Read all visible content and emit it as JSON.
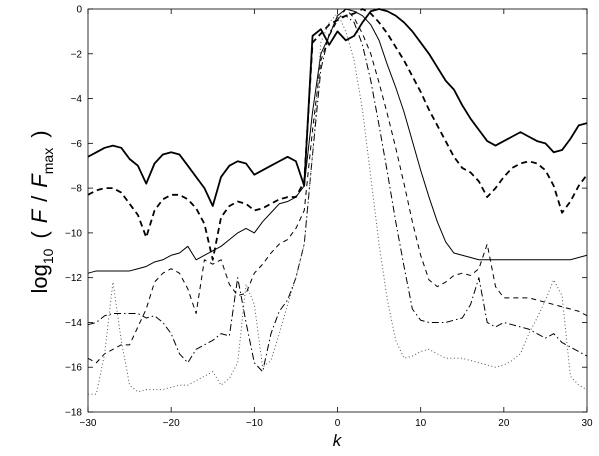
{
  "chart_data": {
    "type": "line",
    "xlabel": "k",
    "ylabel": {
      "prefix": "log",
      "sub10": "10",
      "open": "(",
      "var1": "F",
      "slash": "/",
      "var2": "F",
      "subvar": "max",
      "close": ")"
    },
    "xlim": [
      -30,
      30
    ],
    "ylim": [
      -18,
      0
    ],
    "xticks": [
      -30,
      -20,
      -10,
      0,
      10,
      20,
      30
    ],
    "yticks": [
      0,
      -2,
      -4,
      -6,
      -8,
      -10,
      -12,
      -14,
      -16,
      -18
    ],
    "grid": false,
    "legend": false,
    "series": [
      {
        "style": "thick-solid",
        "x": [
          -30,
          -29,
          -28,
          -27,
          -26,
          -25,
          -24,
          -23,
          -22,
          -21,
          -20,
          -19,
          -18,
          -17,
          -16,
          -15,
          -14,
          -13,
          -12,
          -11,
          -10,
          -9,
          -8,
          -7,
          -6,
          -5,
          -4,
          -3,
          -2,
          -1,
          0,
          1,
          2,
          3,
          4,
          5,
          6,
          7,
          8,
          9,
          10,
          11,
          12,
          13,
          14,
          15,
          16,
          17,
          18,
          19,
          20,
          21,
          22,
          23,
          24,
          25,
          26,
          27,
          28,
          29,
          30
        ],
        "y": [
          -6.6,
          -6.4,
          -6.2,
          -6.1,
          -6.2,
          -6.7,
          -7.0,
          -7.8,
          -6.9,
          -6.5,
          -6.4,
          -6.5,
          -7.0,
          -7.5,
          -8.0,
          -8.8,
          -7.5,
          -7.0,
          -6.8,
          -6.9,
          -7.4,
          -7.2,
          -7.0,
          -6.8,
          -6.6,
          -6.8,
          -7.9,
          -1.2,
          -0.9,
          -1.6,
          -1.0,
          -1.4,
          -1.2,
          -0.6,
          -0.1,
          0,
          -0.1,
          -0.3,
          -0.6,
          -1.0,
          -1.5,
          -2.0,
          -2.6,
          -3.2,
          -3.6,
          -4.3,
          -4.9,
          -5.4,
          -5.9,
          -6.1,
          -5.9,
          -5.7,
          -5.5,
          -5.7,
          -5.9,
          -6.0,
          -6.4,
          -6.3,
          -5.8,
          -5.2,
          -5.1
        ]
      },
      {
        "style": "thick-dashed",
        "x": [
          -30,
          -29,
          -28,
          -27,
          -26,
          -25,
          -24,
          -23,
          -22,
          -21,
          -20,
          -19,
          -18,
          -17,
          -16,
          -15,
          -14,
          -13,
          -12,
          -11,
          -10,
          -9,
          -8,
          -7,
          -6,
          -5,
          -4,
          -3,
          -2,
          -1,
          0,
          1,
          2,
          3,
          4,
          5,
          6,
          7,
          8,
          9,
          10,
          11,
          12,
          13,
          14,
          15,
          16,
          17,
          18,
          19,
          20,
          21,
          22,
          23,
          24,
          25,
          26,
          27,
          28,
          29,
          30
        ],
        "y": [
          -8.3,
          -8.1,
          -8.0,
          -8.0,
          -8.2,
          -8.7,
          -9.2,
          -10.2,
          -9.0,
          -8.5,
          -8.3,
          -8.3,
          -8.5,
          -8.9,
          -9.6,
          -11.2,
          -9.3,
          -8.8,
          -8.6,
          -8.7,
          -9.0,
          -8.9,
          -8.7,
          -8.5,
          -8.4,
          -8.4,
          -7.7,
          -1.5,
          -1.1,
          -0.7,
          -0.5,
          -0.3,
          -0.2,
          0,
          -0.2,
          -0.6,
          -1.1,
          -1.7,
          -2.3,
          -3.0,
          -3.7,
          -4.5,
          -5.2,
          -5.9,
          -6.6,
          -7.1,
          -7.3,
          -7.7,
          -8.4,
          -8.0,
          -7.5,
          -7.1,
          -6.9,
          -6.8,
          -6.9,
          -7.2,
          -7.9,
          -9.1,
          -8.6,
          -7.9,
          -7.4
        ]
      },
      {
        "style": "thin-solid",
        "x": [
          -30,
          -29,
          -28,
          -27,
          -26,
          -25,
          -24,
          -23,
          -22,
          -21,
          -20,
          -19,
          -18,
          -17,
          -16,
          -15,
          -14,
          -13,
          -12,
          -11,
          -10,
          -9,
          -8,
          -7,
          -6,
          -5,
          -4,
          -3,
          -2,
          -1,
          0,
          1,
          2,
          3,
          4,
          5,
          6,
          7,
          8,
          9,
          10,
          11,
          12,
          13,
          14,
          15,
          16,
          17,
          18,
          19,
          20,
          21,
          22,
          23,
          24,
          25,
          26,
          27,
          28,
          29,
          30
        ],
        "y": [
          -11.8,
          -11.7,
          -11.7,
          -11.7,
          -11.7,
          -11.7,
          -11.6,
          -11.5,
          -11.3,
          -11.2,
          -11.0,
          -10.9,
          -10.6,
          -11.2,
          -11.0,
          -10.8,
          -10.6,
          -10.3,
          -10.0,
          -9.8,
          -10.0,
          -9.5,
          -9.1,
          -8.7,
          -8.6,
          -8.4,
          -7.9,
          -4.6,
          -2.0,
          -1.2,
          -0.3,
          0,
          -0.1,
          -0.3,
          -0.7,
          -1.4,
          -2.5,
          -3.5,
          -4.6,
          -5.9,
          -7.2,
          -8.4,
          -9.5,
          -10.4,
          -10.9,
          -11.0,
          -11.1,
          -11.2,
          -11.2,
          -11.2,
          -11.2,
          -11.2,
          -11.2,
          -11.2,
          -11.2,
          -11.2,
          -11.2,
          -11.2,
          -11.2,
          -11.1,
          -11.0
        ]
      },
      {
        "style": "thin-dashed",
        "x": [
          -30,
          -29,
          -28,
          -27,
          -26,
          -25,
          -24,
          -23,
          -22,
          -21,
          -20,
          -19,
          -18,
          -17,
          -16,
          -15,
          -14,
          -13,
          -12,
          -11,
          -10,
          -9,
          -8,
          -7,
          -6,
          -5,
          -4,
          -3,
          -2,
          -1,
          0,
          1,
          2,
          3,
          4,
          5,
          6,
          7,
          8,
          9,
          10,
          11,
          12,
          13,
          14,
          15,
          16,
          17,
          18,
          19,
          20,
          21,
          22,
          23,
          24,
          25,
          26,
          27,
          28,
          29,
          30
        ],
        "y": [
          -15.6,
          -15.8,
          -15.4,
          -15.2,
          -15.0,
          -15.0,
          -14.2,
          -13.4,
          -12.2,
          -11.8,
          -11.6,
          -11.8,
          -12.5,
          -13.6,
          -11.2,
          -11.4,
          -11.2,
          -12.3,
          -12.8,
          -12.7,
          -11.8,
          -11.4,
          -10.9,
          -10.5,
          -10.3,
          -9.8,
          -9.0,
          -5.4,
          -2.3,
          -1.2,
          -0.5,
          0,
          -0.4,
          -1.1,
          -2.0,
          -3.3,
          -4.7,
          -6.2,
          -7.8,
          -9.5,
          -11.0,
          -12.1,
          -12.4,
          -12.2,
          -11.9,
          -11.8,
          -11.9,
          -11.6,
          -10.5,
          -12.4,
          -12.9,
          -12.9,
          -12.9,
          -12.9,
          -13.0,
          -13.1,
          -13.2,
          -13.3,
          -13.4,
          -13.5,
          -13.7
        ]
      },
      {
        "style": "dash-dot",
        "x": [
          -30,
          -29,
          -28,
          -27,
          -26,
          -25,
          -24,
          -23,
          -22,
          -21,
          -20,
          -19,
          -18,
          -17,
          -16,
          -15,
          -14,
          -13,
          -12,
          -11,
          -10,
          -9,
          -8,
          -7,
          -6,
          -5,
          -4,
          -3,
          -2,
          -1,
          0,
          1,
          2,
          3,
          4,
          5,
          6,
          7,
          8,
          9,
          10,
          11,
          12,
          13,
          14,
          15,
          16,
          17,
          18,
          19,
          20,
          21,
          22,
          23,
          24,
          25,
          26,
          27,
          28,
          29,
          30
        ],
        "y": [
          -14.1,
          -14.0,
          -13.7,
          -13.6,
          -13.6,
          -13.6,
          -13.6,
          -13.8,
          -13.7,
          -14.0,
          -14.5,
          -15.4,
          -15.8,
          -15.2,
          -15.0,
          -14.8,
          -14.5,
          -14.6,
          -12.0,
          -14.0,
          -15.8,
          -16.2,
          -14.5,
          -13.5,
          -13.0,
          -12.0,
          -10.5,
          -6.5,
          -2.7,
          -1.1,
          -0.4,
          -0.3,
          -0.6,
          -1.6,
          -3.2,
          -5.2,
          -7.3,
          -9.5,
          -11.5,
          -13.4,
          -13.9,
          -14.0,
          -14.0,
          -14.0,
          -13.9,
          -13.8,
          -13.2,
          -12.0,
          -14.0,
          -14.2,
          -14.0,
          -14.1,
          -14.2,
          -14.3,
          -14.5,
          -14.7,
          -14.5,
          -14.9,
          -15.1,
          -15.3,
          -15.5
        ]
      },
      {
        "style": "dotted",
        "x": [
          -30,
          -29,
          -28,
          -27,
          -26,
          -25,
          -24,
          -23,
          -22,
          -21,
          -20,
          -19,
          -18,
          -17,
          -16,
          -15,
          -14,
          -13,
          -12,
          -11,
          -10,
          -9,
          -8,
          -7,
          -6,
          -5,
          -4,
          -3,
          -2,
          -1,
          0,
          1,
          2,
          3,
          4,
          5,
          6,
          7,
          8,
          9,
          10,
          11,
          12,
          13,
          14,
          15,
          16,
          17,
          18,
          19,
          20,
          21,
          22,
          23,
          24,
          25,
          26,
          27,
          28,
          29,
          30
        ],
        "y": [
          -17.2,
          -17.2,
          -15.4,
          -12.2,
          -14.8,
          -16.8,
          -17.1,
          -17.0,
          -17.0,
          -17.0,
          -16.9,
          -16.8,
          -16.8,
          -16.6,
          -16.4,
          -16.2,
          -16.8,
          -16.5,
          -15.8,
          -12.3,
          -13.2,
          -16.0,
          -15.7,
          -14.5,
          -13.2,
          -12.0,
          -10.5,
          -6.5,
          -1.5,
          -0.6,
          -0.2,
          -1.0,
          -2.3,
          -4.5,
          -7.5,
          -10.5,
          -13.0,
          -14.8,
          -15.6,
          -15.5,
          -15.3,
          -15.2,
          -15.4,
          -15.6,
          -15.6,
          -15.6,
          -15.7,
          -15.8,
          -15.9,
          -16.0,
          -15.9,
          -15.7,
          -15.4,
          -14.5,
          -13.8,
          -13.0,
          -12.1,
          -12.8,
          -16.4,
          -16.8,
          -17.0
        ]
      }
    ]
  }
}
